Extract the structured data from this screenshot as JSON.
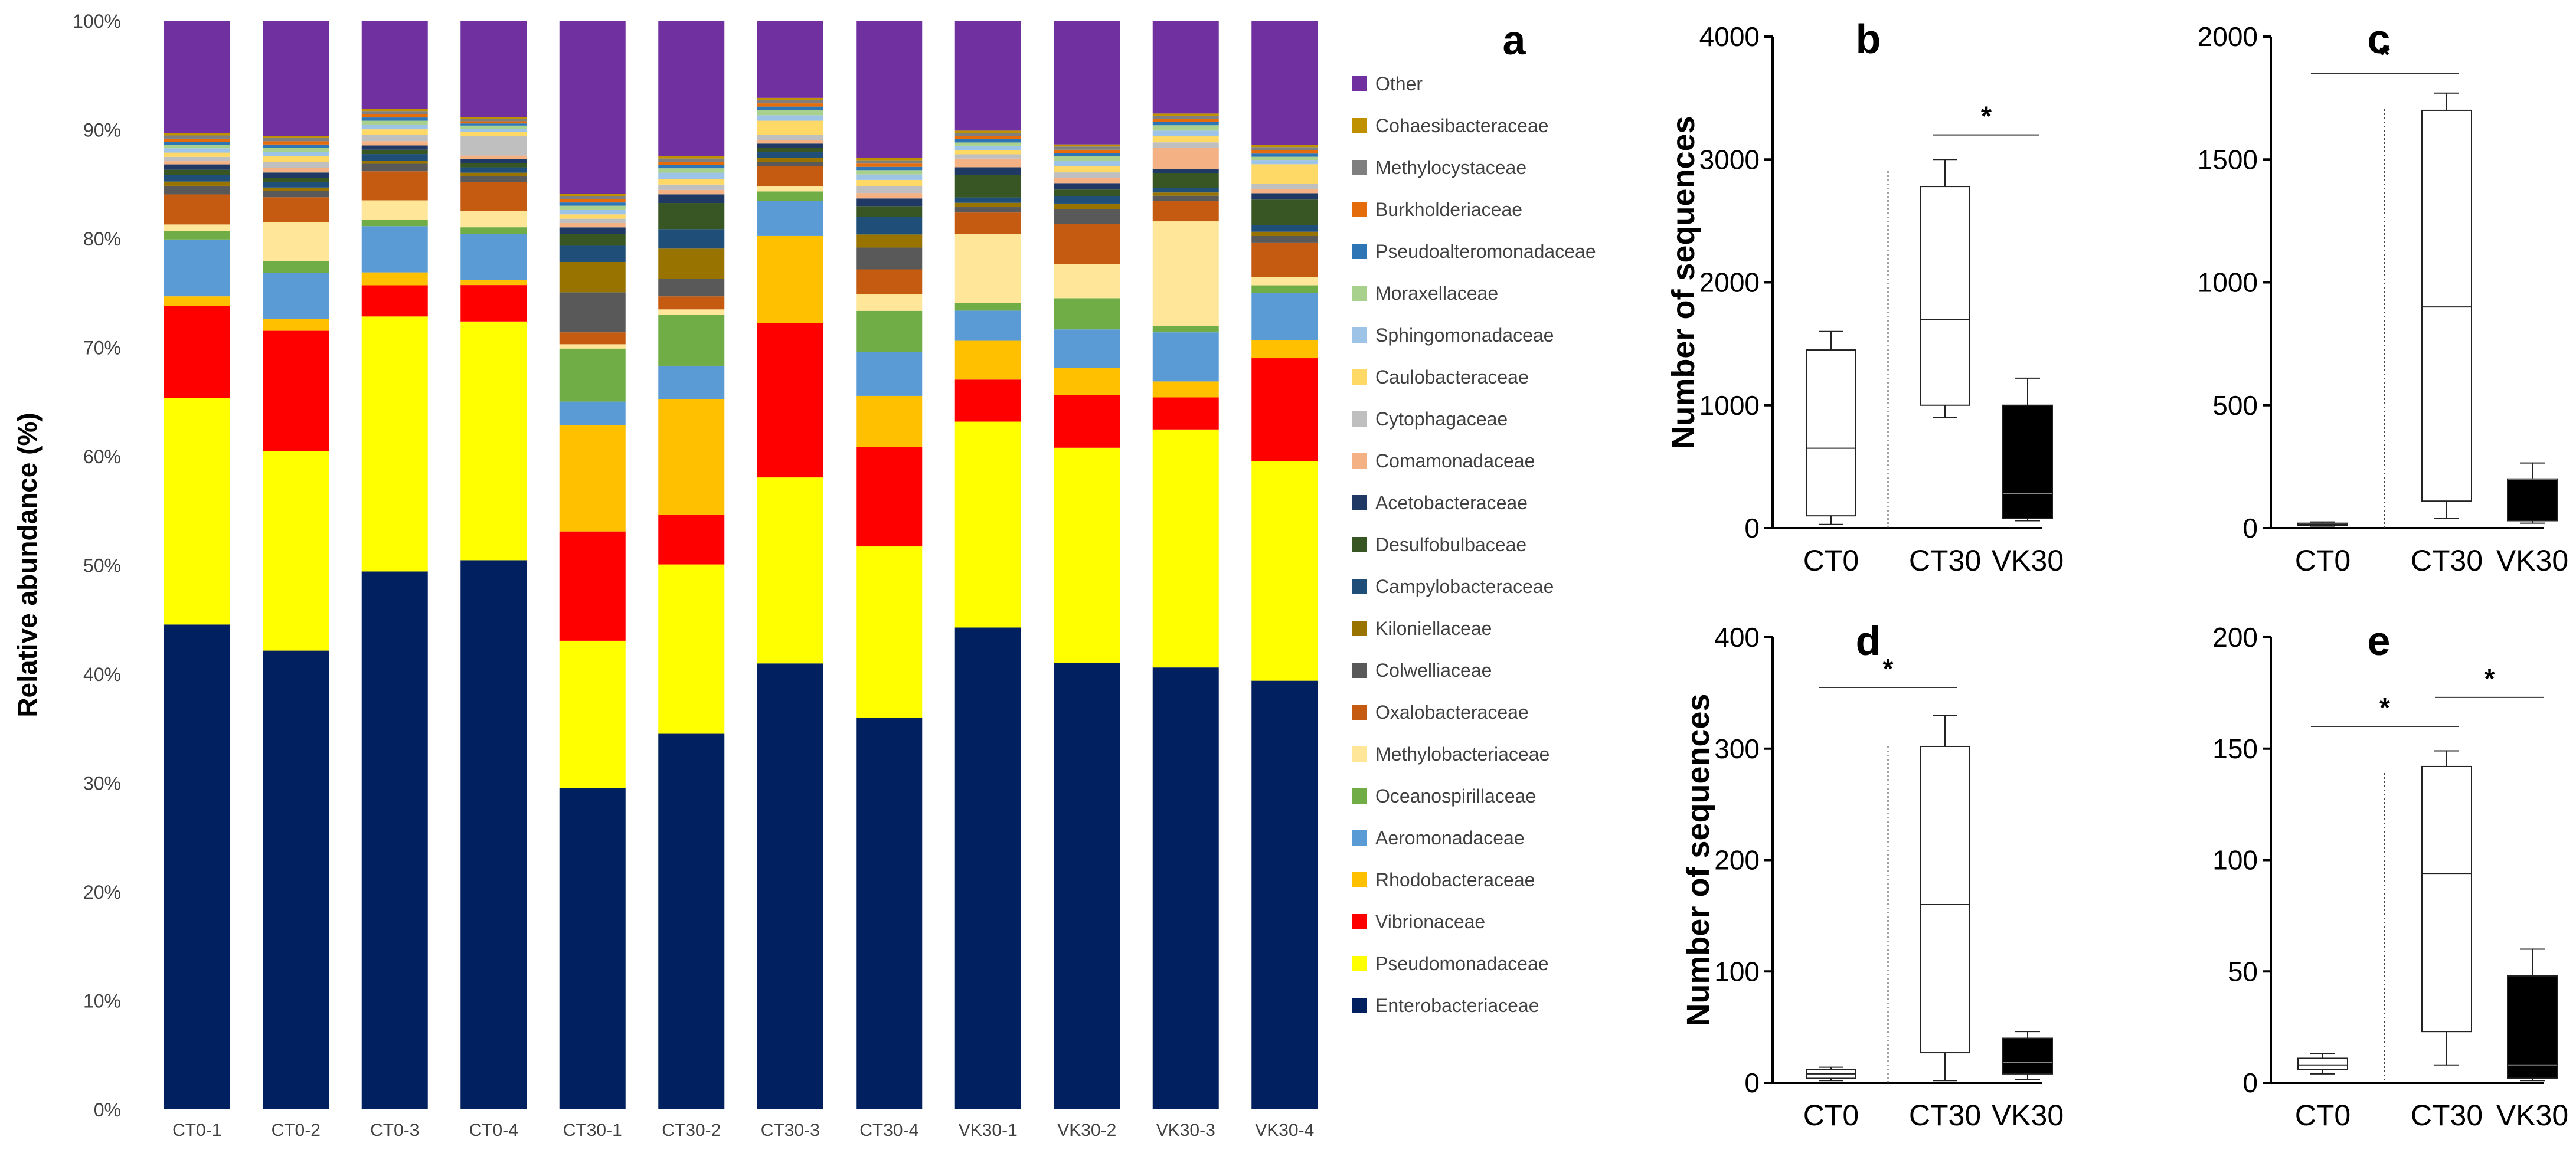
{
  "chart_data": [
    {
      "panel_label": "a",
      "type": "stacked-bar",
      "ylabel": "Relative abundance (%)",
      "xlabel": "",
      "ylim": [
        0,
        100
      ],
      "yticks": [
        "0%",
        "10%",
        "20%",
        "30%",
        "40%",
        "50%",
        "60%",
        "70%",
        "80%",
        "90%",
        "100%"
      ],
      "categories": [
        "CT0-1",
        "CT0-2",
        "CT0-3",
        "CT0-4",
        "CT30-1",
        "CT30-2",
        "CT30-3",
        "CT30-4",
        "VK30-1",
        "VK30-2",
        "VK30-3",
        "VK30-4"
      ],
      "legend_order_top_to_bottom": [
        "Other",
        "Cohaesibacteraceae",
        "Methylocystaceae",
        "Burkholderiaceae",
        "Pseudoalteromonadaceae",
        "Moraxellaceae",
        "Sphingomonadaceae",
        "Caulobacteraceae",
        "Cytophagaceae",
        "Comamonadaceae",
        "Acetobacteraceae",
        "Desulfobulbaceae",
        "Campylobacteraceae",
        "Kiloniellaceae",
        "Colwelliaceae",
        "Oxalobacteraceae",
        "Methylobacteriaceae",
        "Oceanospirillaceae",
        "Aeromonadaceae",
        "Rhodobacteraceae",
        "Vibrionaceae",
        "Pseudomonadaceae",
        "Enterobacteriaceae"
      ],
      "series": [
        {
          "name": "Enterobacteriaceae",
          "color": "#002060",
          "values": [
            45.2,
            42.6,
            50.0,
            51.3,
            29.7,
            34.6,
            41.0,
            35.9,
            44.7,
            41.5,
            41.4,
            40.0
          ]
        },
        {
          "name": "Pseudomonadaceae",
          "color": "#FFFF00",
          "values": [
            21.1,
            18.5,
            23.7,
            22.3,
            13.6,
            15.6,
            17.1,
            15.7,
            19.1,
            20.0,
            22.3,
            20.5
          ]
        },
        {
          "name": "Vibrionaceae",
          "color": "#FF0000",
          "values": [
            8.6,
            11.2,
            2.9,
            3.4,
            10.1,
            4.6,
            14.2,
            9.1,
            3.9,
            4.9,
            3.0,
            9.6
          ]
        },
        {
          "name": "Rhodobacteraceae",
          "color": "#FFC000",
          "values": [
            0.9,
            1.1,
            1.2,
            0.5,
            9.8,
            10.6,
            8.0,
            4.7,
            3.6,
            2.5,
            1.5,
            1.7
          ]
        },
        {
          "name": "Aeromonadaceae",
          "color": "#5B9BD5",
          "values": [
            5.3,
            4.3,
            4.3,
            4.3,
            2.2,
            3.1,
            3.2,
            4.0,
            2.8,
            3.6,
            4.6,
            4.4
          ]
        },
        {
          "name": "Oceanospirillaceae",
          "color": "#70AD47",
          "values": [
            0.8,
            1.1,
            0.6,
            0.6,
            4.9,
            4.7,
            0.9,
            3.8,
            0.7,
            2.9,
            0.6,
            0.7
          ]
        },
        {
          "name": "Methylobacteriaceae",
          "color": "#FFE699",
          "values": [
            0.6,
            3.6,
            1.8,
            1.5,
            0.4,
            0.5,
            0.5,
            1.5,
            6.4,
            3.2,
            9.8,
            0.8
          ]
        },
        {
          "name": "Oxalobacteraceae",
          "color": "#C55A11",
          "values": [
            2.8,
            2.3,
            2.7,
            2.7,
            1.1,
            1.2,
            1.8,
            2.3,
            2.0,
            3.7,
            1.9,
            3.2
          ]
        },
        {
          "name": "Colwelliaceae",
          "color": "#595959",
          "values": [
            0.8,
            0.6,
            0.7,
            0.6,
            3.7,
            1.6,
            0.4,
            2.0,
            0.5,
            1.4,
            0.5,
            0.6
          ]
        },
        {
          "name": "Kiloniellaceae",
          "color": "#997300",
          "values": [
            0.4,
            0.3,
            0.3,
            0.3,
            2.8,
            2.8,
            0.4,
            1.2,
            0.4,
            0.5,
            0.3,
            0.4
          ]
        },
        {
          "name": "Campylobacteraceae",
          "color": "#1F4E79",
          "values": [
            0.6,
            0.5,
            0.6,
            0.5,
            1.5,
            1.8,
            0.5,
            1.6,
            0.5,
            0.7,
            0.4,
            0.6
          ]
        },
        {
          "name": "Desulfobulbaceae",
          "color": "#375623",
          "values": [
            0.5,
            0.4,
            0.4,
            0.4,
            1.1,
            2.4,
            0.4,
            1.0,
            2.1,
            0.6,
            1.4,
            2.4
          ]
        },
        {
          "name": "Acetobacteraceae",
          "color": "#203864",
          "values": [
            0.5,
            0.5,
            0.4,
            0.4,
            0.6,
            0.8,
            0.4,
            0.7,
            0.7,
            0.6,
            0.4,
            0.6
          ]
        },
        {
          "name": "Comamonadaceae",
          "color": "#F4B183",
          "values": [
            0.3,
            0.4,
            0.4,
            0.3,
            0.4,
            0.4,
            0.3,
            0.5,
            0.8,
            0.5,
            2.0,
            0.4
          ]
        },
        {
          "name": "Cytophagaceae",
          "color": "#BFBFBF",
          "values": [
            0.4,
            0.6,
            0.6,
            1.8,
            0.4,
            0.5,
            0.5,
            0.6,
            0.4,
            0.5,
            0.5,
            0.5
          ]
        },
        {
          "name": "Caulobacteraceae",
          "color": "#FFD966",
          "values": [
            0.4,
            0.5,
            0.5,
            0.4,
            0.4,
            0.5,
            1.3,
            0.6,
            0.4,
            0.6,
            0.6,
            1.8
          ]
        },
        {
          "name": "Sphingomonadaceae",
          "color": "#9DC3E6",
          "values": [
            0.4,
            0.4,
            0.4,
            0.3,
            0.4,
            0.6,
            0.5,
            0.5,
            0.4,
            0.5,
            0.5,
            0.4
          ]
        },
        {
          "name": "Moraxellaceae",
          "color": "#A9D18E",
          "values": [
            0.3,
            0.4,
            0.4,
            0.3,
            0.4,
            0.4,
            0.5,
            0.4,
            0.3,
            0.4,
            0.5,
            0.3
          ]
        },
        {
          "name": "Pseudoalteromonadaceae",
          "color": "#2E75B6",
          "values": [
            0.3,
            0.3,
            0.3,
            0.2,
            0.3,
            0.3,
            0.3,
            0.3,
            0.3,
            0.3,
            0.3,
            0.3
          ]
        },
        {
          "name": "Burkholderiaceae",
          "color": "#E46C0A",
          "values": [
            0.3,
            0.3,
            0.3,
            0.2,
            0.3,
            0.3,
            0.3,
            0.3,
            0.3,
            0.3,
            0.3,
            0.3
          ]
        },
        {
          "name": "Methylocystaceae",
          "color": "#7F7F7F",
          "values": [
            0.3,
            0.3,
            0.3,
            0.2,
            0.3,
            0.3,
            0.3,
            0.3,
            0.3,
            0.3,
            0.3,
            0.3
          ]
        },
        {
          "name": "Cohaesibacteraceae",
          "color": "#BF9000",
          "values": [
            0.2,
            0.2,
            0.2,
            0.2,
            0.2,
            0.2,
            0.2,
            0.2,
            0.2,
            0.2,
            0.2,
            0.2
          ]
        },
        {
          "name": "Other",
          "color": "#7030A0",
          "values": [
            10.5,
            10.7,
            8.2,
            9.0,
            16.0,
            12.5,
            7.1,
            12.6,
            10.2,
            11.5,
            8.7,
            11.6
          ]
        }
      ]
    },
    {
      "panel_label": "b",
      "type": "box",
      "ylabel": "Number of sequences",
      "ylim": [
        0,
        4000
      ],
      "yticks": [
        "0",
        "1000",
        "2000",
        "3000",
        "4000"
      ],
      "categories": [
        "CT0",
        "CT30",
        "VK30"
      ],
      "boxes": [
        {
          "min": 30,
          "q1": 100,
          "median": 650,
          "q3": 1450,
          "max": 1600,
          "fill": "white"
        },
        {
          "min": 900,
          "q1": 1000,
          "median": 1700,
          "q3": 2780,
          "max": 3000,
          "fill": "white"
        },
        {
          "min": 60,
          "q1": 80,
          "median": 280,
          "q3": 1000,
          "max": 1220,
          "fill": "black"
        }
      ],
      "significance": [
        {
          "from": "CT30",
          "to": "VK30",
          "label": "*",
          "y": 3200
        }
      ]
    },
    {
      "panel_label": "c",
      "type": "box",
      "ylabel": "",
      "ylim": [
        0,
        2000
      ],
      "yticks": [
        "0",
        "500",
        "1000",
        "1500",
        "2000"
      ],
      "categories": [
        "CT0",
        "CT30",
        "VK30"
      ],
      "boxes": [
        {
          "min": 8,
          "q1": 10,
          "median": 15,
          "q3": 20,
          "max": 25,
          "fill": "white"
        },
        {
          "min": 40,
          "q1": 110,
          "median": 900,
          "q3": 1700,
          "max": 1770,
          "fill": "white"
        },
        {
          "min": 20,
          "q1": 30,
          "median": 200,
          "q3": 200,
          "max": 265,
          "fill": "black"
        }
      ],
      "significance": [
        {
          "from": "CT0",
          "to": "CT30",
          "label": "*",
          "y": 1850
        }
      ]
    },
    {
      "panel_label": "d",
      "type": "box",
      "ylabel": "Number of sequences",
      "ylim": [
        0,
        400
      ],
      "yticks": [
        "0",
        "100",
        "200",
        "300",
        "400"
      ],
      "categories": [
        "CT0",
        "CT30",
        "VK30"
      ],
      "boxes": [
        {
          "min": 2,
          "q1": 4,
          "median": 8,
          "q3": 12,
          "max": 14,
          "fill": "white"
        },
        {
          "min": 2,
          "q1": 27,
          "median": 160,
          "q3": 302,
          "max": 330,
          "fill": "white"
        },
        {
          "min": 3,
          "q1": 8,
          "median": 18,
          "q3": 40,
          "max": 46,
          "fill": "black"
        }
      ],
      "significance": [
        {
          "from": "CT0",
          "to": "CT30",
          "label": "*",
          "y": 355
        }
      ]
    },
    {
      "panel_label": "e",
      "type": "box",
      "ylabel": "",
      "ylim": [
        0,
        200
      ],
      "yticks": [
        "0",
        "50",
        "100",
        "150",
        "200"
      ],
      "categories": [
        "CT0",
        "CT30",
        "VK30"
      ],
      "boxes": [
        {
          "min": 4,
          "q1": 6,
          "median": 8,
          "q3": 11,
          "max": 13,
          "fill": "white"
        },
        {
          "min": 8,
          "q1": 23,
          "median": 94,
          "q3": 142,
          "max": 149,
          "fill": "white"
        },
        {
          "min": 1,
          "q1": 2,
          "median": 8,
          "q3": 48,
          "max": 60,
          "fill": "black"
        }
      ],
      "significance": [
        {
          "from": "CT0",
          "to": "CT30",
          "label": "*",
          "y": 160
        },
        {
          "from": "CT30",
          "to": "VK30",
          "label": "*",
          "y": 173
        }
      ]
    }
  ]
}
